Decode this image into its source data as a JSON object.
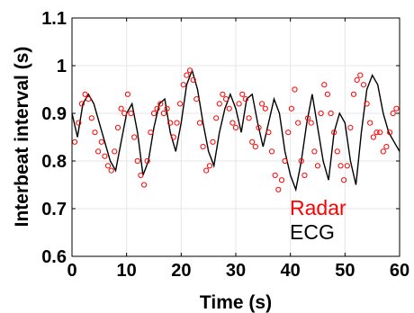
{
  "chart_data": {
    "type": "line",
    "title": "",
    "xlabel": "Time (s)",
    "ylabel": "Interbeat interval (s)",
    "xlim": [
      0,
      60
    ],
    "ylim": [
      0.6,
      1.1
    ],
    "x_ticks": [
      "0",
      "10",
      "20",
      "30",
      "40",
      "50",
      "60"
    ],
    "y_ticks": [
      "0.6",
      "0.7",
      "0.8",
      "0.9",
      "1",
      "1.1"
    ],
    "grid": true,
    "legend_position": "lower-right (inside plot)",
    "series": [
      {
        "name": "Radar",
        "style": "circle markers",
        "color": "#ff0000",
        "x": [
          0.5,
          1.2,
          1.8,
          2.4,
          3.0,
          3.6,
          4.2,
          4.8,
          5.4,
          6.0,
          6.6,
          7.2,
          7.8,
          8.4,
          9.0,
          9.6,
          10.2,
          10.8,
          11.4,
          12.0,
          12.6,
          13.2,
          13.8,
          14.4,
          15.0,
          15.6,
          16.2,
          16.8,
          17.4,
          18.0,
          18.6,
          19.2,
          19.8,
          20.4,
          21.0,
          21.6,
          22.2,
          22.8,
          23.4,
          24.0,
          24.6,
          25.2,
          25.8,
          26.4,
          27.0,
          27.6,
          28.2,
          28.8,
          29.4,
          30.0,
          30.6,
          31.2,
          31.8,
          32.4,
          33.0,
          33.6,
          34.2,
          34.8,
          35.4,
          36.0,
          36.6,
          37.2,
          37.8,
          38.4,
          39.0,
          39.6,
          40.2,
          40.8,
          41.4,
          42.0,
          42.6,
          43.2,
          43.8,
          44.4,
          45.0,
          45.6,
          46.2,
          46.8,
          47.4,
          48.0,
          48.6,
          49.2,
          49.8,
          50.4,
          51.0,
          51.6,
          52.2,
          52.8,
          53.4,
          54.0,
          54.6,
          55.2,
          55.8,
          56.4,
          57.0,
          57.6,
          58.2,
          58.8,
          59.4
        ],
        "y": [
          0.84,
          0.88,
          0.92,
          0.94,
          0.93,
          0.89,
          0.86,
          0.82,
          0.84,
          0.81,
          0.79,
          0.78,
          0.82,
          0.87,
          0.91,
          0.9,
          0.94,
          0.9,
          0.85,
          0.8,
          0.77,
          0.75,
          0.8,
          0.86,
          0.9,
          0.91,
          0.92,
          0.9,
          0.91,
          0.88,
          0.85,
          0.88,
          0.92,
          0.96,
          0.98,
          0.99,
          0.97,
          0.93,
          0.88,
          0.83,
          0.78,
          0.79,
          0.84,
          0.89,
          0.92,
          0.94,
          0.93,
          0.91,
          0.88,
          0.87,
          0.92,
          0.94,
          0.93,
          0.89,
          0.84,
          0.83,
          0.87,
          0.92,
          0.91,
          0.86,
          0.82,
          0.77,
          0.74,
          0.76,
          0.8,
          0.86,
          0.91,
          0.95,
          0.88,
          0.8,
          0.77,
          0.89,
          0.88,
          0.82,
          0.79,
          0.9,
          0.96,
          0.94,
          0.9,
          0.86,
          0.82,
          0.79,
          0.76,
          0.79,
          0.87,
          0.94,
          0.97,
          0.98,
          0.96,
          0.92,
          0.88,
          0.85,
          0.86,
          0.86,
          0.82,
          0.83,
          0.86,
          0.9,
          0.91
        ]
      },
      {
        "name": "ECG",
        "style": "line",
        "color": "#000000",
        "x": [
          0,
          1,
          2,
          3,
          4,
          5,
          6,
          7,
          8,
          9,
          10,
          11,
          12,
          13,
          14,
          15,
          16,
          17,
          18,
          19,
          20,
          21,
          22,
          23,
          24,
          25,
          26,
          27,
          28,
          29,
          30,
          31,
          32,
          33,
          34,
          35,
          36,
          37,
          38,
          39,
          40,
          41,
          42,
          43,
          44,
          45,
          46,
          47,
          48,
          49,
          50,
          51,
          52,
          53,
          54,
          55,
          56,
          57,
          58,
          59,
          60
        ],
        "y": [
          0.9,
          0.85,
          0.92,
          0.94,
          0.92,
          0.88,
          0.84,
          0.8,
          0.78,
          0.84,
          0.9,
          0.92,
          0.86,
          0.77,
          0.8,
          0.87,
          0.92,
          0.93,
          0.86,
          0.82,
          0.88,
          0.96,
          0.99,
          0.95,
          0.88,
          0.82,
          0.79,
          0.86,
          0.91,
          0.94,
          0.91,
          0.86,
          0.93,
          0.94,
          0.88,
          0.83,
          0.88,
          0.93,
          0.9,
          0.82,
          0.77,
          0.74,
          0.8,
          0.88,
          0.94,
          0.87,
          0.8,
          0.76,
          0.86,
          0.9,
          0.88,
          0.8,
          0.75,
          0.86,
          0.95,
          0.98,
          0.96,
          0.9,
          0.86,
          0.84,
          0.82
        ]
      }
    ]
  }
}
